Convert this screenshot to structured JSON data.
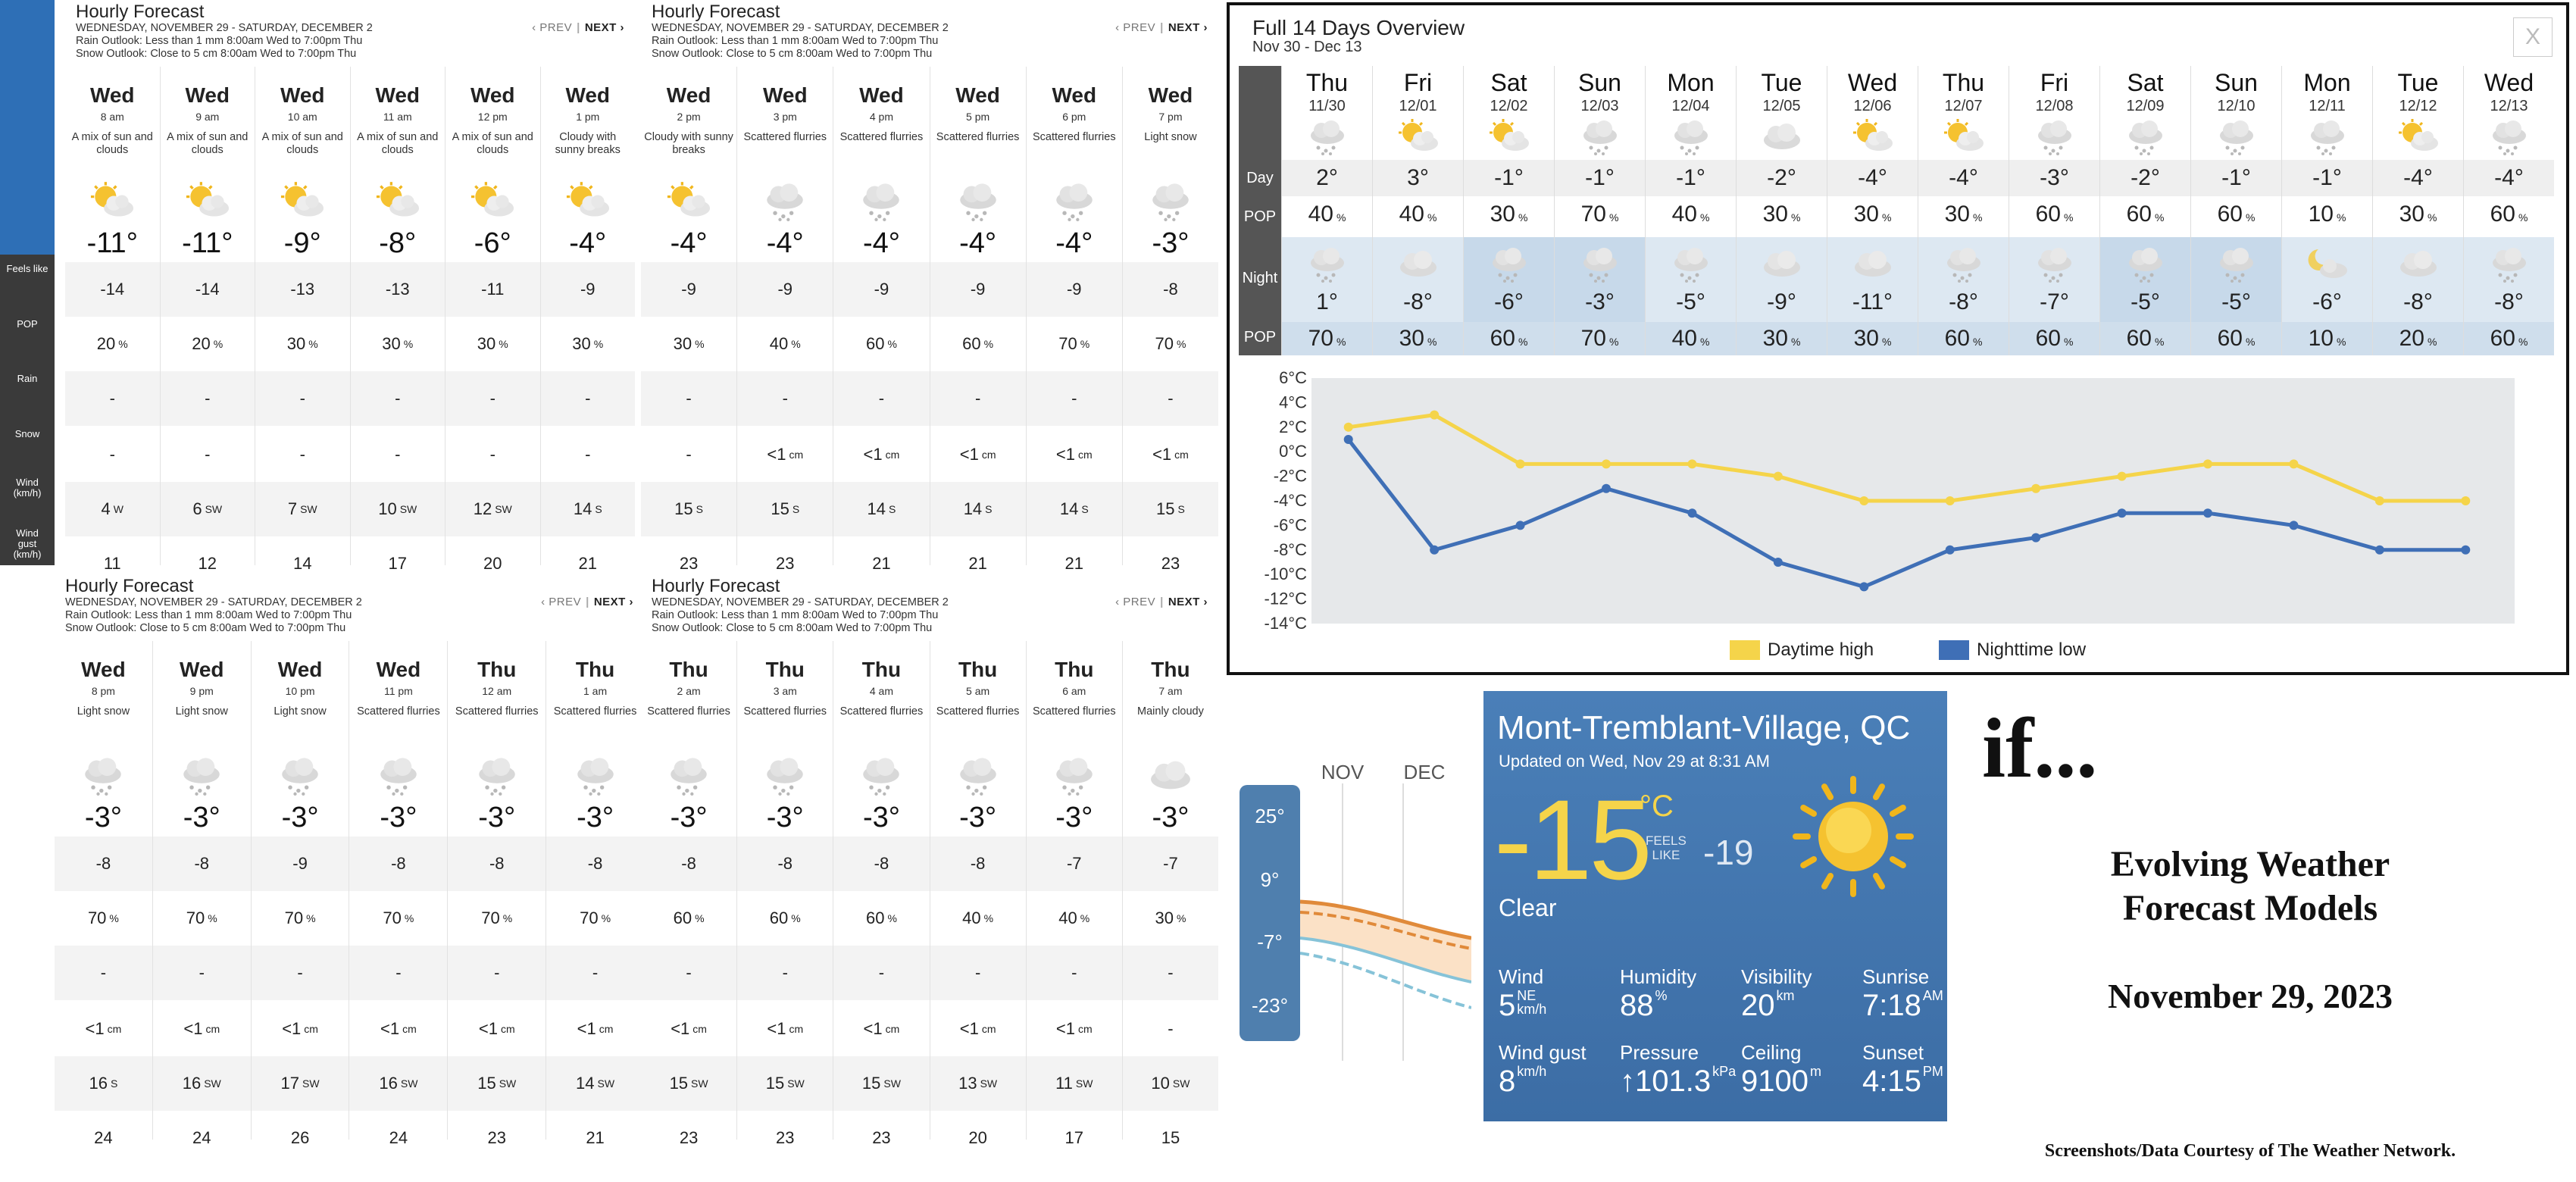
{
  "hourly_panels": [
    {
      "title": "Hourly Forecast",
      "date_range": "WEDNESDAY, NOVEMBER 29 - SATURDAY, DECEMBER 2",
      "rain_outlook": "Rain Outlook: Less than 1 mm 8:00am Wed to 7:00pm Thu",
      "snow_outlook": "Snow Outlook: Close to 5 cm 8:00am Wed to 7:00pm Thu",
      "prev": "‹ PREV",
      "next": "NEXT ›",
      "columns": [
        {
          "day": "Wed",
          "time": "8 am",
          "cond": "A mix of sun and clouds",
          "icon": "sun-cloud",
          "temp": "-11°",
          "feels": "-14",
          "pop": "20",
          "rain": "-",
          "snow": "-",
          "wind": "4",
          "dir": "W",
          "gust": "11"
        },
        {
          "day": "Wed",
          "time": "9 am",
          "cond": "A mix of sun and clouds",
          "icon": "sun-cloud",
          "temp": "-11°",
          "feels": "-14",
          "pop": "20",
          "rain": "-",
          "snow": "-",
          "wind": "6",
          "dir": "SW",
          "gust": "12"
        },
        {
          "day": "Wed",
          "time": "10 am",
          "cond": "A mix of sun and clouds",
          "icon": "sun-cloud",
          "temp": "-9°",
          "feels": "-13",
          "pop": "30",
          "rain": "-",
          "snow": "-",
          "wind": "7",
          "dir": "SW",
          "gust": "14"
        },
        {
          "day": "Wed",
          "time": "11 am",
          "cond": "A mix of sun and clouds",
          "icon": "sun-cloud",
          "temp": "-8°",
          "feels": "-13",
          "pop": "30",
          "rain": "-",
          "snow": "-",
          "wind": "10",
          "dir": "SW",
          "gust": "17"
        },
        {
          "day": "Wed",
          "time": "12 pm",
          "cond": "A mix of sun and clouds",
          "icon": "sun-cloud",
          "temp": "-6°",
          "feels": "-11",
          "pop": "30",
          "rain": "-",
          "snow": "-",
          "wind": "12",
          "dir": "SW",
          "gust": "20"
        },
        {
          "day": "Wed",
          "time": "1 pm",
          "cond": "Cloudy with sunny breaks",
          "icon": "sun-cloud",
          "temp": "-4°",
          "feels": "-9",
          "pop": "30",
          "rain": "-",
          "snow": "-",
          "wind": "14",
          "dir": "S",
          "gust": "21"
        }
      ]
    },
    {
      "title": "Hourly Forecast",
      "date_range": "WEDNESDAY, NOVEMBER 29 - SATURDAY, DECEMBER 2",
      "rain_outlook": "Rain Outlook: Less than 1 mm 8:00am Wed to 7:00pm Thu",
      "snow_outlook": "Snow Outlook: Close to 5 cm 8:00am Wed to 7:00pm Thu",
      "prev": "‹ PREV",
      "next": "NEXT ›",
      "columns": [
        {
          "day": "Wed",
          "time": "2 pm",
          "cond": "Cloudy with sunny breaks",
          "icon": "sun-cloud",
          "temp": "-4°",
          "feels": "-9",
          "pop": "30",
          "rain": "-",
          "snow": "-",
          "wind": "15",
          "dir": "S",
          "gust": "23"
        },
        {
          "day": "Wed",
          "time": "3 pm",
          "cond": "Scattered flurries",
          "icon": "flurries",
          "temp": "-4°",
          "feels": "-9",
          "pop": "40",
          "rain": "-",
          "snow": "<1",
          "wind": "15",
          "dir": "S",
          "gust": "23"
        },
        {
          "day": "Wed",
          "time": "4 pm",
          "cond": "Scattered flurries",
          "icon": "flurries",
          "temp": "-4°",
          "feels": "-9",
          "pop": "60",
          "rain": "-",
          "snow": "<1",
          "wind": "14",
          "dir": "S",
          "gust": "21"
        },
        {
          "day": "Wed",
          "time": "5 pm",
          "cond": "Scattered flurries",
          "icon": "flurries",
          "temp": "-4°",
          "feels": "-9",
          "pop": "60",
          "rain": "-",
          "snow": "<1",
          "wind": "14",
          "dir": "S",
          "gust": "21"
        },
        {
          "day": "Wed",
          "time": "6 pm",
          "cond": "Scattered flurries",
          "icon": "flurries",
          "temp": "-4°",
          "feels": "-9",
          "pop": "70",
          "rain": "-",
          "snow": "<1",
          "wind": "14",
          "dir": "S",
          "gust": "21"
        },
        {
          "day": "Wed",
          "time": "7 pm",
          "cond": "Light snow",
          "icon": "flurries",
          "temp": "-3°",
          "feels": "-8",
          "pop": "70",
          "rain": "-",
          "snow": "<1",
          "wind": "15",
          "dir": "S",
          "gust": "23"
        }
      ]
    },
    {
      "title": "Hourly Forecast",
      "date_range": "WEDNESDAY, NOVEMBER 29 - SATURDAY, DECEMBER 2",
      "rain_outlook": "Rain Outlook: Less than 1 mm 8:00am Wed to 7:00pm Thu",
      "snow_outlook": "Snow Outlook: Close to 5 cm 8:00am Wed to 7:00pm Thu",
      "prev": "‹ PREV",
      "next": "NEXT ›",
      "columns": [
        {
          "day": "Wed",
          "time": "8 pm",
          "cond": "Light snow",
          "icon": "flurries",
          "temp": "-3°",
          "feels": "-8",
          "pop": "70",
          "rain": "-",
          "snow": "<1",
          "wind": "16",
          "dir": "S",
          "gust": "24"
        },
        {
          "day": "Wed",
          "time": "9 pm",
          "cond": "Light snow",
          "icon": "flurries",
          "temp": "-3°",
          "feels": "-8",
          "pop": "70",
          "rain": "-",
          "snow": "<1",
          "wind": "16",
          "dir": "SW",
          "gust": "24"
        },
        {
          "day": "Wed",
          "time": "10 pm",
          "cond": "Light snow",
          "icon": "flurries",
          "temp": "-3°",
          "feels": "-9",
          "pop": "70",
          "rain": "-",
          "snow": "<1",
          "wind": "17",
          "dir": "SW",
          "gust": "26"
        },
        {
          "day": "Wed",
          "time": "11 pm",
          "cond": "Scattered flurries",
          "icon": "flurries",
          "temp": "-3°",
          "feels": "-8",
          "pop": "70",
          "rain": "-",
          "snow": "<1",
          "wind": "16",
          "dir": "SW",
          "gust": "24"
        },
        {
          "day": "Thu",
          "time": "12 am",
          "cond": "Scattered flurries",
          "icon": "flurries",
          "temp": "-3°",
          "feels": "-8",
          "pop": "70",
          "rain": "-",
          "snow": "<1",
          "wind": "15",
          "dir": "SW",
          "gust": "23"
        },
        {
          "day": "Thu",
          "time": "1 am",
          "cond": "Scattered flurries",
          "icon": "flurries",
          "temp": "-3°",
          "feels": "-8",
          "pop": "70",
          "rain": "-",
          "snow": "<1",
          "wind": "14",
          "dir": "SW",
          "gust": "21"
        }
      ]
    },
    {
      "title": "Hourly Forecast",
      "date_range": "WEDNESDAY, NOVEMBER 29 - SATURDAY, DECEMBER 2",
      "rain_outlook": "Rain Outlook: Less than 1 mm 8:00am Wed to 7:00pm Thu",
      "snow_outlook": "Snow Outlook: Close to 5 cm 8:00am Wed to 7:00pm Thu",
      "prev": "‹ PREV",
      "next": "NEXT ›",
      "columns": [
        {
          "day": "Thu",
          "time": "2 am",
          "cond": "Scattered flurries",
          "icon": "flurries",
          "temp": "-3°",
          "feels": "-8",
          "pop": "60",
          "rain": "-",
          "snow": "<1",
          "wind": "15",
          "dir": "SW",
          "gust": "23"
        },
        {
          "day": "Thu",
          "time": "3 am",
          "cond": "Scattered flurries",
          "icon": "flurries",
          "temp": "-3°",
          "feels": "-8",
          "pop": "60",
          "rain": "-",
          "snow": "<1",
          "wind": "15",
          "dir": "SW",
          "gust": "23"
        },
        {
          "day": "Thu",
          "time": "4 am",
          "cond": "Scattered flurries",
          "icon": "flurries",
          "temp": "-3°",
          "feels": "-8",
          "pop": "60",
          "rain": "-",
          "snow": "<1",
          "wind": "15",
          "dir": "SW",
          "gust": "23"
        },
        {
          "day": "Thu",
          "time": "5 am",
          "cond": "Scattered flurries",
          "icon": "flurries",
          "temp": "-3°",
          "feels": "-8",
          "pop": "40",
          "rain": "-",
          "snow": "<1",
          "wind": "13",
          "dir": "SW",
          "gust": "20"
        },
        {
          "day": "Thu",
          "time": "6 am",
          "cond": "Scattered flurries",
          "icon": "flurries",
          "temp": "-3°",
          "feels": "-7",
          "pop": "40",
          "rain": "-",
          "snow": "<1",
          "wind": "11",
          "dir": "SW",
          "gust": "17"
        },
        {
          "day": "Thu",
          "time": "7 am",
          "cond": "Mainly cloudy",
          "icon": "cloud",
          "temp": "-3°",
          "feels": "-7",
          "pop": "30",
          "rain": "-",
          "snow": "-",
          "wind": "10",
          "dir": "SW",
          "gust": "15"
        }
      ]
    }
  ],
  "row_labels": {
    "feels": "Feels like",
    "pop": "POP",
    "rain": "Rain",
    "snow": "Snow",
    "wind": "Wind (km/h)",
    "gust": "Wind gust (km/h)"
  },
  "units": {
    "pct": "%",
    "cm": "cm"
  },
  "overview": {
    "title": "Full 14 Days Overview",
    "range": "Nov 30 - Dec 13",
    "close": "X",
    "day_label": "Day",
    "pop_label": "POP",
    "night_label": "Night",
    "pct": "%",
    "days": [
      {
        "dow": "Thu",
        "date": "11/30",
        "day_icon": "flurries",
        "day_temp": "2°",
        "day_pop": "40",
        "night_icon": "flurries",
        "night_temp": "1°",
        "night_pop": "70",
        "hi": false
      },
      {
        "dow": "Fri",
        "date": "12/01",
        "day_icon": "sun-cloud",
        "day_temp": "3°",
        "day_pop": "40",
        "night_icon": "cloud",
        "night_temp": "-8°",
        "night_pop": "30",
        "hi": false
      },
      {
        "dow": "Sat",
        "date": "12/02",
        "day_icon": "sun-cloud",
        "day_temp": "-1°",
        "day_pop": "30",
        "night_icon": "flurries",
        "night_temp": "-6°",
        "night_pop": "60",
        "hi": true
      },
      {
        "dow": "Sun",
        "date": "12/03",
        "day_icon": "flurries",
        "day_temp": "-1°",
        "day_pop": "70",
        "night_icon": "flurries",
        "night_temp": "-3°",
        "night_pop": "70",
        "hi": true
      },
      {
        "dow": "Mon",
        "date": "12/04",
        "day_icon": "flurries",
        "day_temp": "-1°",
        "day_pop": "40",
        "night_icon": "flurries",
        "night_temp": "-5°",
        "night_pop": "40",
        "hi": false
      },
      {
        "dow": "Tue",
        "date": "12/05",
        "day_icon": "cloud",
        "day_temp": "-2°",
        "day_pop": "30",
        "night_icon": "cloud",
        "night_temp": "-9°",
        "night_pop": "30",
        "hi": false
      },
      {
        "dow": "Wed",
        "date": "12/06",
        "day_icon": "sun-cloud",
        "day_temp": "-4°",
        "day_pop": "30",
        "night_icon": "cloud",
        "night_temp": "-11°",
        "night_pop": "30",
        "hi": false
      },
      {
        "dow": "Thu",
        "date": "12/07",
        "day_icon": "sun-cloud",
        "day_temp": "-4°",
        "day_pop": "30",
        "night_icon": "flurries",
        "night_temp": "-8°",
        "night_pop": "60",
        "hi": false
      },
      {
        "dow": "Fri",
        "date": "12/08",
        "day_icon": "flurries",
        "day_temp": "-3°",
        "day_pop": "60",
        "night_icon": "flurries",
        "night_temp": "-7°",
        "night_pop": "60",
        "hi": false
      },
      {
        "dow": "Sat",
        "date": "12/09",
        "day_icon": "flurries",
        "day_temp": "-2°",
        "day_pop": "60",
        "night_icon": "flurries",
        "night_temp": "-5°",
        "night_pop": "60",
        "hi": true
      },
      {
        "dow": "Sun",
        "date": "12/10",
        "day_icon": "flurries",
        "day_temp": "-1°",
        "day_pop": "60",
        "night_icon": "flurries",
        "night_temp": "-5°",
        "night_pop": "60",
        "hi": true
      },
      {
        "dow": "Mon",
        "date": "12/11",
        "day_icon": "flurries",
        "day_temp": "-1°",
        "day_pop": "10",
        "night_icon": "moon-cloud",
        "night_temp": "-6°",
        "night_pop": "10",
        "hi": false
      },
      {
        "dow": "Tue",
        "date": "12/12",
        "day_icon": "sun-cloud",
        "day_temp": "-4°",
        "day_pop": "30",
        "night_icon": "cloud",
        "night_temp": "-8°",
        "night_pop": "20",
        "hi": false
      },
      {
        "dow": "Wed",
        "date": "12/13",
        "day_icon": "flurries",
        "day_temp": "-4°",
        "day_pop": "60",
        "night_icon": "flurries",
        "night_temp": "-8°",
        "night_pop": "60",
        "hi": false
      }
    ]
  },
  "chart_data": {
    "type": "line",
    "x": [
      "11/30",
      "12/01",
      "12/02",
      "12/03",
      "12/04",
      "12/05",
      "12/06",
      "12/07",
      "12/08",
      "12/09",
      "12/10",
      "12/11",
      "12/12",
      "12/13"
    ],
    "series": [
      {
        "name": "Daytime high",
        "color": "#f5d44a",
        "values": [
          2,
          3,
          -1,
          -1,
          -1,
          -2,
          -4,
          -4,
          -3,
          -2,
          -1,
          -1,
          -4,
          -4
        ]
      },
      {
        "name": "Nighttime low",
        "color": "#3f6fb6",
        "values": [
          1,
          -8,
          -6,
          -3,
          -5,
          -9,
          -11,
          -8,
          -7,
          -5,
          -5,
          -6,
          -8,
          -8
        ]
      }
    ],
    "yticks": [
      "6°C",
      "4°C",
      "2°C",
      "0°C",
      "-2°C",
      "-4°C",
      "-6°C",
      "-8°C",
      "-10°C",
      "-12°C",
      "-14°C"
    ],
    "ylim": [
      -14,
      6
    ],
    "grid": false,
    "legend": "bottom"
  },
  "mini_chart": {
    "months": [
      "NOV",
      "DEC"
    ],
    "scale": [
      "25°",
      "9°",
      "-7°",
      "-23°"
    ]
  },
  "current": {
    "city": "Mont-Tremblant-Village, QC",
    "updated": "Updated on Wed, Nov 29 at 8:31 AM",
    "temp": "-15",
    "unit": "°C",
    "feels_label_1": "FEELS",
    "feels_label_2": "LIKE",
    "feels": "-19",
    "condition": "Clear",
    "stats": [
      {
        "label": "Wind",
        "value": "5",
        "unit_top": "NE",
        "unit": "km/h"
      },
      {
        "label": "Humidity",
        "value": "88",
        "unit_top": "%",
        "unit": ""
      },
      {
        "label": "Visibility",
        "value": "20",
        "unit_top": "km",
        "unit": ""
      },
      {
        "label": "Sunrise",
        "value": "7:18",
        "unit_top": "AM",
        "unit": ""
      },
      {
        "label": "Wind gust",
        "value": "8",
        "unit_top": "km/h",
        "unit": ""
      },
      {
        "label": "Pressure",
        "value": "↑101.3",
        "unit_top": "kPa",
        "unit": ""
      },
      {
        "label": "Ceiling",
        "value": "9100",
        "unit_top": "m",
        "unit": ""
      },
      {
        "label": "Sunset",
        "value": "4:15",
        "unit_top": "PM",
        "unit": ""
      }
    ]
  },
  "side": {
    "if_text": "if...",
    "line1": "Evolving Weather",
    "line2": "Forecast Models",
    "date": "November 29, 2023",
    "credit": "Screenshots/Data Courtesy of The Weather Network."
  },
  "colors": {
    "blue": "#2e6fb6",
    "yellow": "#f5d44a",
    "panel": "#3c6da5"
  }
}
